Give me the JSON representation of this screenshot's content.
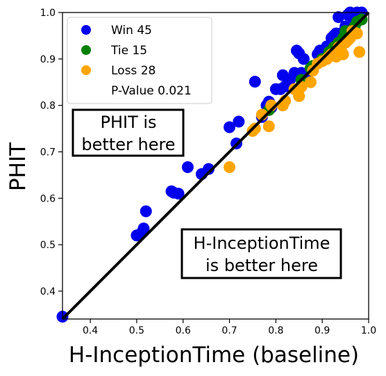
{
  "chart_data": {
    "type": "scatter",
    "xlabel": "H-InceptionTime (baseline)",
    "ylabel": "PHIT",
    "xlim": [
      0.34,
      1.0
    ],
    "ylim": [
      0.34,
      1.0
    ],
    "xticks": [
      "0.4",
      "0.5",
      "0.6",
      "0.7",
      "0.8",
      "0.9",
      "1.0"
    ],
    "yticks": [
      "0.4",
      "0.5",
      "0.6",
      "0.7",
      "0.8",
      "0.9",
      "1.0"
    ],
    "grid": false,
    "legend_position": "top-left",
    "legend": {
      "win": "Win 45",
      "tie": "Tie 15",
      "loss": "Loss 28",
      "pvalue": "P-Value 0.021"
    },
    "annotations": {
      "phit_line1": "PHIT is",
      "phit_line2": "better here",
      "base_line1": "H-InceptionTime",
      "base_line2": "is better here"
    },
    "colors": {
      "win": "#0000ee",
      "tie": "#008000",
      "loss": "#ffa500",
      "diagonal": "#000000"
    },
    "series": [
      {
        "name": "Win 45",
        "color": "#0000ee",
        "points": [
          [
            0.34,
            0.345
          ],
          [
            0.5,
            0.52
          ],
          [
            0.51,
            0.525
          ],
          [
            0.515,
            0.535
          ],
          [
            0.52,
            0.572
          ],
          [
            0.575,
            0.615
          ],
          [
            0.58,
            0.612
          ],
          [
            0.59,
            0.61
          ],
          [
            0.61,
            0.667
          ],
          [
            0.64,
            0.652
          ],
          [
            0.655,
            0.663
          ],
          [
            0.7,
            0.753
          ],
          [
            0.715,
            0.718
          ],
          [
            0.72,
            0.765
          ],
          [
            0.755,
            0.851
          ],
          [
            0.77,
            0.775
          ],
          [
            0.78,
            0.8
          ],
          [
            0.785,
            0.808
          ],
          [
            0.79,
            0.795
          ],
          [
            0.8,
            0.835
          ],
          [
            0.81,
            0.835
          ],
          [
            0.815,
            0.865
          ],
          [
            0.82,
            0.841
          ],
          [
            0.83,
            0.855
          ],
          [
            0.84,
            0.87
          ],
          [
            0.845,
            0.918
          ],
          [
            0.85,
            0.912
          ],
          [
            0.855,
            0.87
          ],
          [
            0.86,
            0.9
          ],
          [
            0.865,
            0.862
          ],
          [
            0.875,
            0.88
          ],
          [
            0.89,
            0.91
          ],
          [
            0.895,
            0.918
          ],
          [
            0.91,
            0.927
          ],
          [
            0.92,
            0.945
          ],
          [
            0.925,
            0.95
          ],
          [
            0.93,
            0.955
          ],
          [
            0.935,
            0.99
          ],
          [
            0.94,
            0.955
          ],
          [
            0.95,
            0.97
          ],
          [
            0.955,
            0.995
          ],
          [
            0.96,
            1.0
          ],
          [
            0.965,
            0.99
          ],
          [
            0.975,
            1.0
          ],
          [
            0.985,
            1.0
          ]
        ]
      },
      {
        "name": "Tie 15",
        "color": "#008000",
        "points": [
          [
            0.785,
            0.79
          ],
          [
            0.855,
            0.855
          ],
          [
            0.875,
            0.88
          ],
          [
            0.88,
            0.885
          ],
          [
            0.9,
            0.9
          ],
          [
            0.915,
            0.915
          ],
          [
            0.925,
            0.925
          ],
          [
            0.935,
            0.935
          ],
          [
            0.945,
            0.945
          ],
          [
            0.95,
            0.96
          ],
          [
            0.955,
            0.955
          ],
          [
            0.96,
            0.96
          ],
          [
            0.97,
            0.97
          ],
          [
            0.975,
            0.98
          ],
          [
            0.985,
            0.985
          ]
        ]
      },
      {
        "name": "Loss 28",
        "color": "#ffa500",
        "points": [
          [
            0.7,
            0.667
          ],
          [
            0.75,
            0.745
          ],
          [
            0.755,
            0.75
          ],
          [
            0.77,
            0.78
          ],
          [
            0.785,
            0.755
          ],
          [
            0.79,
            0.8
          ],
          [
            0.815,
            0.8
          ],
          [
            0.82,
            0.81
          ],
          [
            0.84,
            0.835
          ],
          [
            0.85,
            0.82
          ],
          [
            0.855,
            0.84
          ],
          [
            0.875,
            0.85
          ],
          [
            0.88,
            0.875
          ],
          [
            0.89,
            0.89
          ],
          [
            0.9,
            0.895
          ],
          [
            0.91,
            0.9
          ],
          [
            0.915,
            0.905
          ],
          [
            0.92,
            0.91
          ],
          [
            0.93,
            0.905
          ],
          [
            0.935,
            0.925
          ],
          [
            0.94,
            0.92
          ],
          [
            0.945,
            0.91
          ],
          [
            0.95,
            0.935
          ],
          [
            0.955,
            0.94
          ],
          [
            0.96,
            0.945
          ],
          [
            0.965,
            0.96
          ],
          [
            0.975,
            0.955
          ],
          [
            0.98,
            0.915
          ]
        ]
      }
    ]
  }
}
